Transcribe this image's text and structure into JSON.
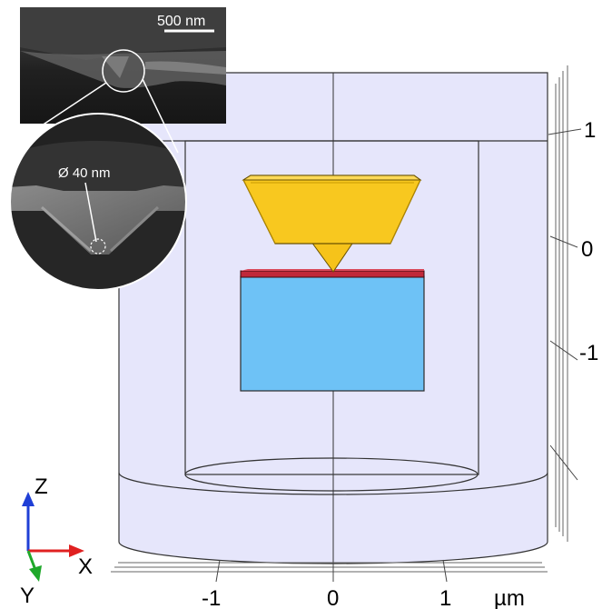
{
  "scale_bar": {
    "label": "500 nm"
  },
  "tip_annotation": {
    "label": "Ø 40 nm"
  },
  "z_axis_ticks": [
    "1",
    "0",
    "-1"
  ],
  "x_axis_ticks": [
    "-1",
    "0",
    "1"
  ],
  "unit_label": "µm",
  "triad": {
    "z_label": "Z",
    "x_label": "X",
    "y_label": "Y",
    "z_color": "#1f3fd6",
    "x_color": "#e02020",
    "y_color": "#1fa82a"
  },
  "colors": {
    "domain_fill": "#e6e6fb",
    "tip_gold": "#f8c81f",
    "layer_red": "#c0283a",
    "substrate_blue": "#6ec2f6"
  }
}
